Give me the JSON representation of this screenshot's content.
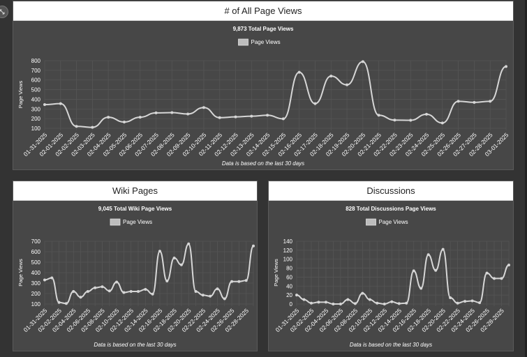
{
  "colors": {
    "page_bg": "#333333",
    "panel_bg": "#474747",
    "grid": "#555555",
    "series_line": "#d6d6d6",
    "legend_swatch": "#bdbdbd"
  },
  "ui": {
    "collapse_icon": "expand-arrows-icon"
  },
  "panels": {
    "all": {
      "heading": "# of All Page Views"
    },
    "wiki": {
      "heading": "Wiki Pages"
    },
    "disc": {
      "heading": "Discussions"
    }
  },
  "chart_data": [
    {
      "type": "line",
      "title": "9,873 Total Page Views",
      "legend": "Page Views",
      "legend_position": "top-center",
      "ylabel": "Page Views",
      "footnote": "Data is based on the last 30 days",
      "grid": true,
      "ylim": [
        100,
        800
      ],
      "yticks": [
        100,
        200,
        300,
        400,
        500,
        600,
        700,
        800
      ],
      "x": [
        "01-31-2025",
        "02-01-2025",
        "02-02-2025",
        "02-03-2025",
        "02-04-2025",
        "02-05-2025",
        "02-06-2025",
        "02-07-2025",
        "02-08-2025",
        "02-09-2025",
        "02-10-2025",
        "02-11-2025",
        "02-12-2025",
        "02-13-2025",
        "02-14-2025",
        "02-15-2025",
        "02-16-2025",
        "02-17-2025",
        "02-18-2025",
        "02-19-2025",
        "02-20-2025",
        "02-21-2025",
        "02-22-2025",
        "02-23-2025",
        "02-24-2025",
        "02-25-2025",
        "02-26-2025",
        "02-27-2025",
        "02-28-2025",
        "03-01-2025"
      ],
      "x_labels": [
        "01-31-2025",
        "02-01-2025",
        "02-02-2025",
        "02-03-2025",
        "02-04-2025",
        "02-05-2025",
        "02-06-2025",
        "02-07-2025",
        "02-08-2025",
        "02-09-2025",
        "02-10-2025",
        "02-11-2025",
        "02-12-2025",
        "02-13-2025",
        "02-14-2025",
        "02-15-2025",
        "02-16-2025",
        "02-17-2025",
        "02-18-2025",
        "02-19-2025",
        "02-20-2025",
        "02-21-2025",
        "02-22-2025",
        "02-23-2025",
        "02-24-2025",
        "02-25-2025",
        "02-26-2025",
        "02-27-2025",
        "02-28-2025",
        "03-01-2025"
      ],
      "series": [
        {
          "name": "Page Views",
          "values": [
            345,
            355,
            120,
            110,
            215,
            165,
            215,
            260,
            262,
            248,
            315,
            210,
            218,
            225,
            235,
            198,
            680,
            355,
            640,
            550,
            790,
            235,
            185,
            183,
            245,
            155,
            380,
            368,
            380,
            740
          ]
        }
      ]
    },
    {
      "type": "line",
      "title": "9,045 Total Wiki Page Views",
      "legend": "Page Views",
      "legend_position": "top-center",
      "ylabel": "Page Views",
      "footnote": "Data is based on the last 30 days",
      "grid": true,
      "ylim": [
        100,
        700
      ],
      "yticks": [
        100,
        200,
        300,
        400,
        500,
        600,
        700
      ],
      "x": [
        "01-31-2025",
        "02-01-2025",
        "02-02-2025",
        "02-03-2025",
        "02-04-2025",
        "02-05-2025",
        "02-06-2025",
        "02-07-2025",
        "02-08-2025",
        "02-09-2025",
        "02-10-2025",
        "02-11-2025",
        "02-12-2025",
        "02-13-2025",
        "02-14-2025",
        "02-15-2025",
        "02-16-2025",
        "02-17-2025",
        "02-18-2025",
        "02-19-2025",
        "02-20-2025",
        "02-21-2025",
        "02-22-2025",
        "02-23-2025",
        "02-24-2025",
        "02-25-2025",
        "02-26-2025",
        "02-27-2025",
        "02-28-2025",
        "03-01-2025"
      ],
      "x_labels": [
        "01-31-2025",
        "02-02-2025",
        "02-04-2025",
        "02-06-2025",
        "02-08-2025",
        "02-10-2025",
        "02-12-2025",
        "02-14-2025",
        "02-16-2025",
        "02-18-2025",
        "02-20-2025",
        "02-22-2025",
        "02-24-2025",
        "02-26-2025",
        "02-28-2025"
      ],
      "series": [
        {
          "name": "Page Views",
          "values": [
            330,
            350,
            115,
            105,
            220,
            165,
            220,
            255,
            265,
            225,
            310,
            210,
            220,
            220,
            240,
            195,
            605,
            320,
            540,
            475,
            675,
            220,
            185,
            175,
            245,
            150,
            315,
            315,
            325,
            655
          ]
        }
      ]
    },
    {
      "type": "line",
      "title": "828 Total Discussions Page Views",
      "legend": "Page Views",
      "legend_position": "top-center",
      "ylabel": "Page Views",
      "footnote": "Data is based on the last 30 days",
      "grid": true,
      "ylim": [
        0,
        140
      ],
      "yticks": [
        0,
        20,
        40,
        60,
        80,
        100,
        120,
        140
      ],
      "x": [
        "01-31-2025",
        "02-01-2025",
        "02-02-2025",
        "02-03-2025",
        "02-04-2025",
        "02-05-2025",
        "02-06-2025",
        "02-07-2025",
        "02-08-2025",
        "02-09-2025",
        "02-10-2025",
        "02-11-2025",
        "02-12-2025",
        "02-13-2025",
        "02-14-2025",
        "02-15-2025",
        "02-16-2025",
        "02-17-2025",
        "02-18-2025",
        "02-19-2025",
        "02-20-2025",
        "02-21-2025",
        "02-22-2025",
        "02-23-2025",
        "02-24-2025",
        "02-25-2025",
        "02-26-2025",
        "02-27-2025",
        "02-28-2025",
        "03-01-2025"
      ],
      "x_labels": [
        "01-31-2025",
        "02-02-2025",
        "02-04-2025",
        "02-06-2025",
        "02-08-2025",
        "02-10-2025",
        "02-12-2025",
        "02-14-2025",
        "02-16-2025",
        "02-18-2025",
        "02-20-2025",
        "02-22-2025",
        "02-24-2025",
        "02-26-2025",
        "02-28-2025"
      ],
      "series": [
        {
          "name": "Page Views",
          "values": [
            20,
            10,
            2,
            4,
            4,
            0,
            0,
            10,
            1,
            24,
            10,
            2,
            0,
            5,
            1,
            2,
            74,
            35,
            110,
            75,
            122,
            14,
            2,
            6,
            7,
            3,
            69,
            57,
            57,
            87
          ]
        }
      ]
    }
  ]
}
